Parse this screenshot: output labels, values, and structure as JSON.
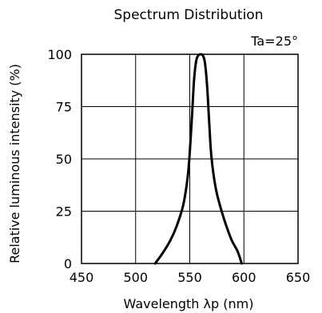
{
  "chart_data": {
    "type": "line",
    "title": "Spectrum Distribution",
    "xlabel": "Wavelength λp (nm)",
    "ylabel": "Relative luminous intensity (%)",
    "annotation": "Ta=25°",
    "xlim": [
      450,
      650
    ],
    "ylim": [
      0,
      100
    ],
    "x_ticks": [
      450,
      500,
      550,
      600,
      650
    ],
    "y_ticks": [
      0,
      25,
      50,
      75,
      100
    ],
    "grid": true,
    "series": [
      {
        "color": "#000000",
        "points": [
          [
            518,
            0
          ],
          [
            525,
            5
          ],
          [
            532,
            11
          ],
          [
            538,
            18
          ],
          [
            544,
            28
          ],
          [
            548,
            41
          ],
          [
            550,
            53
          ],
          [
            552,
            70
          ],
          [
            554,
            88
          ],
          [
            556,
            97
          ],
          [
            558,
            99.5
          ],
          [
            560,
            100
          ],
          [
            562,
            99.5
          ],
          [
            564,
            96
          ],
          [
            566,
            85
          ],
          [
            568,
            67
          ],
          [
            570,
            51
          ],
          [
            574,
            36
          ],
          [
            580,
            24
          ],
          [
            588,
            12
          ],
          [
            594,
            6
          ],
          [
            598,
            0
          ]
        ]
      }
    ]
  }
}
